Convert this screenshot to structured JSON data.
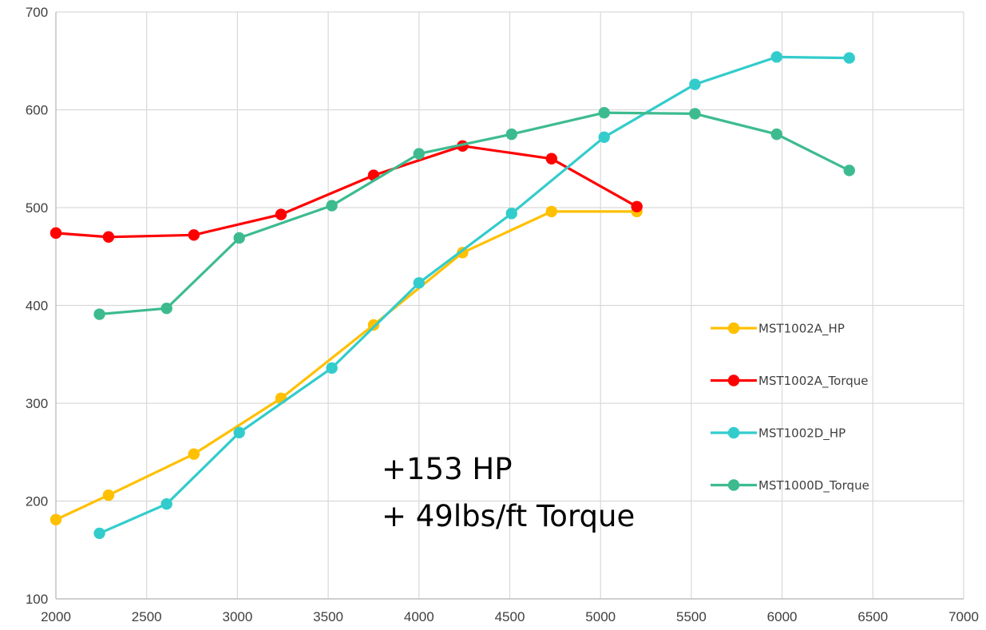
{
  "chart_data": {
    "type": "line",
    "title": "",
    "xlabel": "",
    "ylabel": "",
    "xlim": [
      2000,
      7000
    ],
    "ylim": [
      100,
      700
    ],
    "x_ticks": [
      2000,
      2500,
      3000,
      3500,
      4000,
      4500,
      5000,
      5500,
      6000,
      6500,
      7000
    ],
    "y_ticks": [
      100,
      200,
      300,
      400,
      500,
      600,
      700
    ],
    "grid": true,
    "legend_position": "right",
    "series": [
      {
        "name": "MST1002A_HP",
        "color": "#FFC000",
        "x": [
          2000,
          2290,
          2760,
          3240,
          3750,
          4240,
          4730,
          5200
        ],
        "y": [
          181,
          206,
          248,
          305,
          380,
          454,
          496,
          496
        ]
      },
      {
        "name": "MST1002A_Torque",
        "color": "#FF0000",
        "x": [
          2000,
          2290,
          2760,
          3240,
          3750,
          4240,
          4730,
          5200
        ],
        "y": [
          474,
          470,
          472,
          493,
          533,
          563,
          550,
          501
        ]
      },
      {
        "name": "MST1002D_HP",
        "color": "#33CCCC",
        "x": [
          2240,
          2610,
          3010,
          3520,
          4000,
          4510,
          5020,
          5520,
          5970,
          6370
        ],
        "y": [
          167,
          197,
          270,
          336,
          423,
          494,
          572,
          626,
          654,
          653
        ]
      },
      {
        "name": "MST1000D_Torque",
        "color": "#3DBB8F",
        "x": [
          2240,
          2610,
          3010,
          3520,
          4000,
          4510,
          5020,
          5520,
          5970,
          6370
        ],
        "y": [
          391,
          397,
          469,
          502,
          555,
          575,
          597,
          596,
          575,
          538
        ]
      }
    ],
    "annotations": [
      "+153 HP",
      "+ 49lbs/ft Torque"
    ]
  }
}
